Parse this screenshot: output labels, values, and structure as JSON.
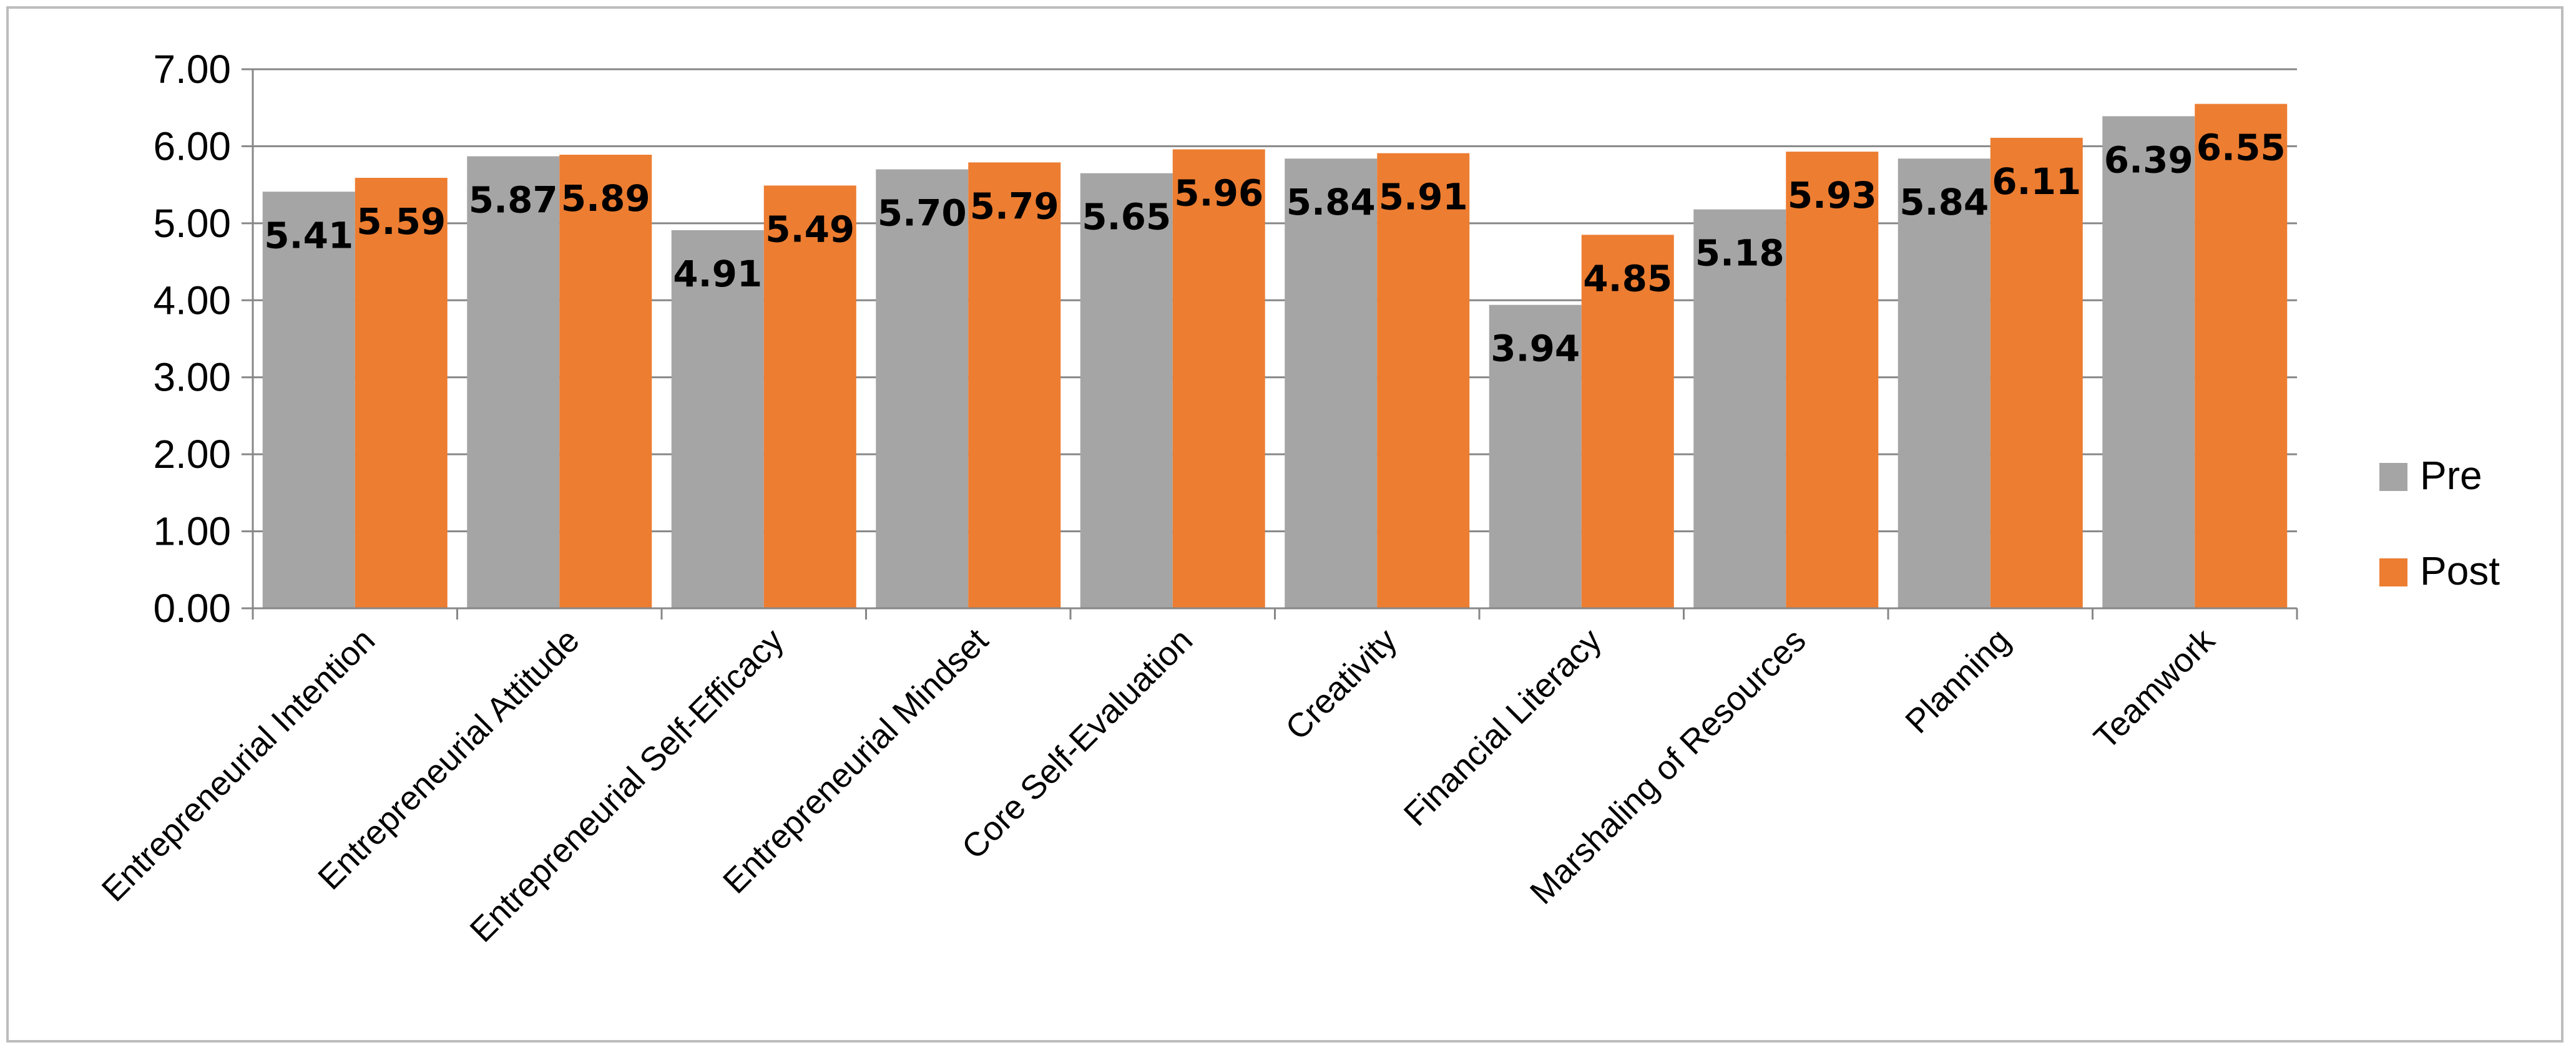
{
  "chart_data": {
    "type": "bar",
    "categories": [
      "Entrepreneurial Intention",
      "Entrepreneurial Attitude",
      "Entrepreneurial Self-Efficacy",
      "Entrepreneurial Mindset",
      "Core Self-Evaluation",
      "Creativity",
      "Financial Literacy",
      "Marshaling of Resources",
      "Planning",
      "Teamwork"
    ],
    "series": [
      {
        "name": "Pre",
        "color": "#a5a5a5",
        "values": [
          5.41,
          5.87,
          4.91,
          5.7,
          5.65,
          5.84,
          3.94,
          5.18,
          5.84,
          6.39
        ],
        "labels": [
          "5.41",
          "5.87",
          "4.91",
          "5.70",
          "5.65",
          "5.84",
          "3.94",
          "5.18",
          "5.84",
          "6.39"
        ]
      },
      {
        "name": "Post",
        "color": "#ed7d31",
        "values": [
          5.59,
          5.89,
          5.49,
          5.79,
          5.96,
          5.91,
          4.85,
          5.93,
          6.11,
          6.55
        ],
        "labels": [
          "5.59",
          "5.89",
          "5.49",
          "5.79",
          "5.96",
          "5.91",
          "4.85",
          "5.93",
          "6.11",
          "6.55"
        ]
      }
    ],
    "ylim": [
      0,
      7
    ],
    "yticks": [
      "0.00",
      "1.00",
      "2.00",
      "3.00",
      "4.00",
      "5.00",
      "6.00",
      "7.00"
    ],
    "grid": true,
    "legend_position": "right",
    "title": "",
    "xlabel": "",
    "ylabel": ""
  }
}
